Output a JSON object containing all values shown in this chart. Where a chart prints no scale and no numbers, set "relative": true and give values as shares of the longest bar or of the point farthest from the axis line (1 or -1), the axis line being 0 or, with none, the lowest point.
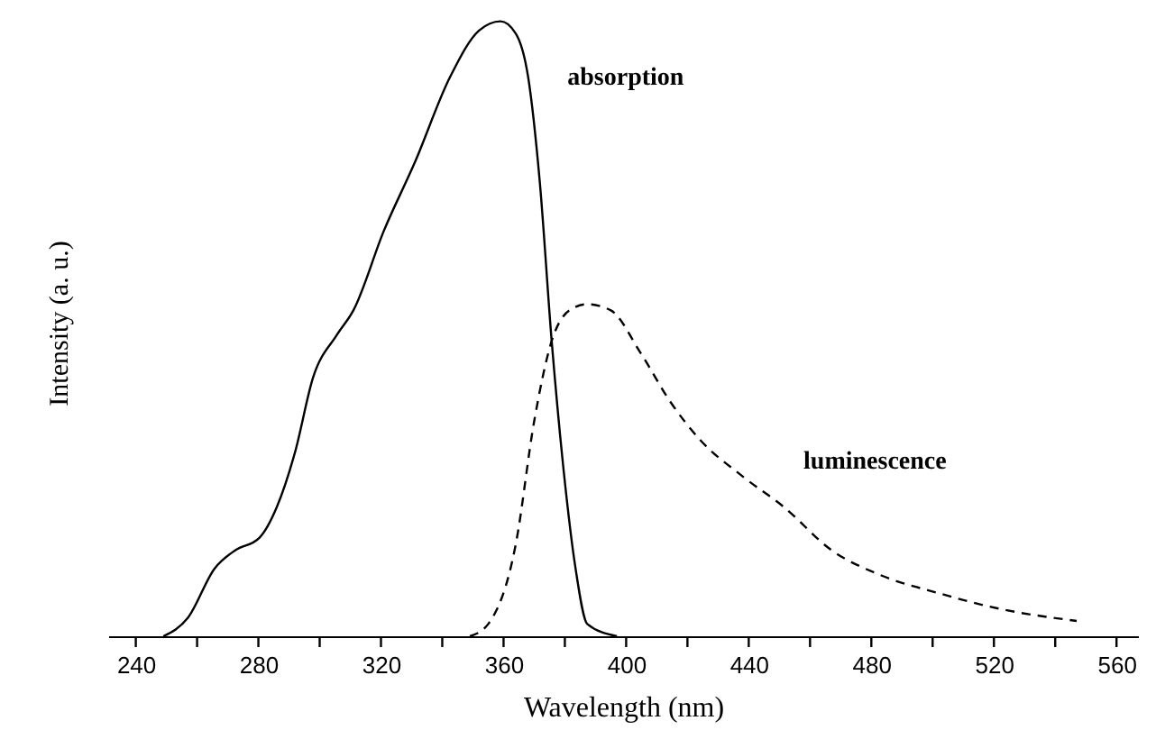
{
  "chart_data": {
    "type": "line",
    "relative": true,
    "xlabel": "Wavelength (nm)",
    "ylabel": "Intensity (a. u.)",
    "xlim": [
      231,
      567
    ],
    "xticks": [
      240,
      {
        "value": 260,
        "label": null
      },
      280,
      {
        "value": 300,
        "label": null
      },
      320,
      {
        "value": 340,
        "label": null
      },
      360,
      {
        "value": 380,
        "label": null
      },
      400,
      {
        "value": 420,
        "label": null
      },
      440,
      {
        "value": 460,
        "label": null
      },
      480,
      {
        "value": 500,
        "label": null
      },
      520,
      {
        "value": 540,
        "label": null
      },
      560
    ],
    "grid": false,
    "legend": false,
    "marker": "none",
    "series": [
      {
        "name": "absorption",
        "color": "#000000",
        "line_style": "solid",
        "x": [
          249,
          257,
          265.7,
          272.5,
          280.3,
          286,
          292,
          297.8,
          305.6,
          311,
          321,
          331,
          342.6,
          352,
          359,
          364,
          368,
          371.8,
          375.7,
          379.6,
          383.5,
          387.3,
          397
        ],
        "values": [
          0,
          0.03,
          0.11,
          0.14,
          0.16,
          0.21,
          0.3,
          0.42,
          0.49,
          0.53,
          0.66,
          0.77,
          0.91,
          0.985,
          1,
          0.98,
          0.91,
          0.74,
          0.48,
          0.27,
          0.11,
          0.02,
          0
        ]
      },
      {
        "name": "luminescence",
        "color": "#000000",
        "line_style": "dashed",
        "x": [
          349,
          355,
          364,
          370,
          375.7,
          381.5,
          387.3,
          395,
          404.8,
          414.6,
          424,
          438,
          451.5,
          467,
          482.7,
          502,
          521.5,
          547
        ],
        "values": [
          0,
          0.02,
          0.15,
          0.35,
          0.48,
          0.53,
          0.54,
          0.53,
          0.46,
          0.38,
          0.32,
          0.26,
          0.21,
          0.14,
          0.1,
          0.07,
          0.045,
          0.025
        ]
      }
    ]
  }
}
